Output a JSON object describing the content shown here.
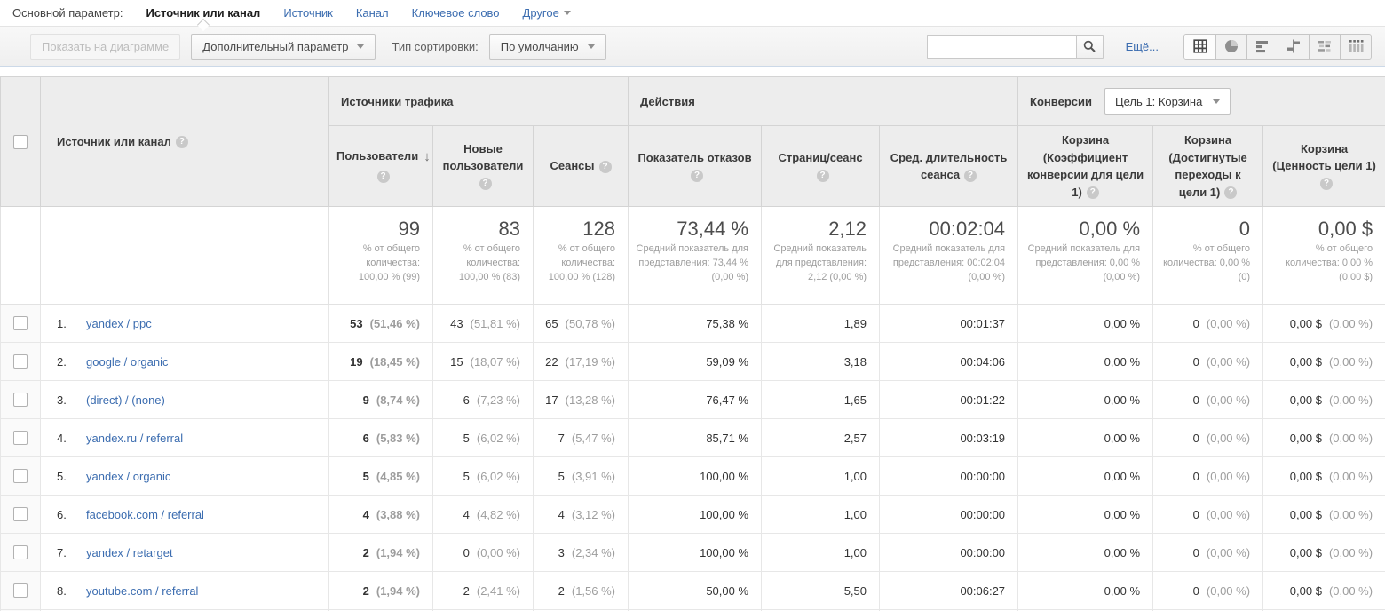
{
  "colors": {
    "link_blue": "#3c6db0",
    "toolbar_divider": "#ccd9e8"
  },
  "primary_bar": {
    "label": "Основной параметр:",
    "tabs": [
      {
        "label": "Источник или канал",
        "active": true
      },
      {
        "label": "Источник",
        "active": false
      },
      {
        "label": "Канал",
        "active": false
      },
      {
        "label": "Ключевое слово",
        "active": false
      },
      {
        "label": "Другое",
        "active": false,
        "dropdown": true
      }
    ]
  },
  "toolbar": {
    "plot_button_label": "Показать на диаграмме",
    "secondary_dimension_label": "Дополнительный параметр",
    "sort_type_label": "Тип сортировки:",
    "sort_type_value": "По умолчанию",
    "search_value": "",
    "more_link_label": "Ещё...",
    "views": [
      "data-table",
      "percentage-pie",
      "performance-bars",
      "comparison",
      "term-cloud",
      "pivot-table"
    ],
    "active_view": "data-table"
  },
  "table": {
    "dimension_header": "Источник или канал",
    "groups": {
      "traffic": "Источники трафика",
      "behavior": "Действия",
      "conversions": "Конверсии",
      "goal_selector": "Цель 1: Корзина"
    },
    "columns": [
      "Пользователи",
      "Новые пользователи",
      "Сеансы",
      "Показатель отказов",
      "Страниц/сеанс",
      "Сред. длительность сеанса",
      "Корзина (Коэффициент конверсии для цели 1)",
      "Корзина (Достигнутые переходы к цели 1)",
      "Корзина (Ценность цели 1)"
    ],
    "summary": [
      {
        "value": "99",
        "note": "% от общего количества: 100,00 % (99)"
      },
      {
        "value": "83",
        "note": "% от общего количества: 100,00 % (83)"
      },
      {
        "value": "128",
        "note": "% от общего количества: 100,00 % (128)"
      },
      {
        "value": "73,44 %",
        "note": "Средний показатель для представления: 73,44 % (0,00 %)"
      },
      {
        "value": "2,12",
        "note": "Средний показатель для представления: 2,12 (0,00 %)"
      },
      {
        "value": "00:02:04",
        "note": "Средний показатель для представления: 00:02:04 (0,00 %)"
      },
      {
        "value": "0,00 %",
        "note": "Средний показатель для представления: 0,00 % (0,00 %)"
      },
      {
        "value": "0",
        "note": "% от общего количества: 0,00 % (0)"
      },
      {
        "value": "0,00 $",
        "note": "% от общего количества: 0,00 % (0,00 $)"
      }
    ],
    "rows": [
      {
        "idx": "1.",
        "source": "yandex / ppc",
        "users": "53",
        "users_pct": "(51,46 %)",
        "new_users": "43",
        "new_users_pct": "(51,81 %)",
        "sessions": "65",
        "sessions_pct": "(50,78 %)",
        "bounce_rate": "75,38 %",
        "pages_per_session": "1,89",
        "avg_duration": "00:01:37",
        "goal_rate": "0,00 %",
        "goal_completions": "0",
        "goal_completions_pct": "(0,00 %)",
        "goal_value": "0,00 $",
        "goal_value_pct": "(0,00 %)"
      },
      {
        "idx": "2.",
        "source": "google / organic",
        "users": "19",
        "users_pct": "(18,45 %)",
        "new_users": "15",
        "new_users_pct": "(18,07 %)",
        "sessions": "22",
        "sessions_pct": "(17,19 %)",
        "bounce_rate": "59,09 %",
        "pages_per_session": "3,18",
        "avg_duration": "00:04:06",
        "goal_rate": "0,00 %",
        "goal_completions": "0",
        "goal_completions_pct": "(0,00 %)",
        "goal_value": "0,00 $",
        "goal_value_pct": "(0,00 %)"
      },
      {
        "idx": "3.",
        "source": "(direct) / (none)",
        "users": "9",
        "users_pct": "(8,74 %)",
        "new_users": "6",
        "new_users_pct": "(7,23 %)",
        "sessions": "17",
        "sessions_pct": "(13,28 %)",
        "bounce_rate": "76,47 %",
        "pages_per_session": "1,65",
        "avg_duration": "00:01:22",
        "goal_rate": "0,00 %",
        "goal_completions": "0",
        "goal_completions_pct": "(0,00 %)",
        "goal_value": "0,00 $",
        "goal_value_pct": "(0,00 %)"
      },
      {
        "idx": "4.",
        "source": "yandex.ru / referral",
        "users": "6",
        "users_pct": "(5,83 %)",
        "new_users": "5",
        "new_users_pct": "(6,02 %)",
        "sessions": "7",
        "sessions_pct": "(5,47 %)",
        "bounce_rate": "85,71 %",
        "pages_per_session": "2,57",
        "avg_duration": "00:03:19",
        "goal_rate": "0,00 %",
        "goal_completions": "0",
        "goal_completions_pct": "(0,00 %)",
        "goal_value": "0,00 $",
        "goal_value_pct": "(0,00 %)"
      },
      {
        "idx": "5.",
        "source": "yandex / organic",
        "users": "5",
        "users_pct": "(4,85 %)",
        "new_users": "5",
        "new_users_pct": "(6,02 %)",
        "sessions": "5",
        "sessions_pct": "(3,91 %)",
        "bounce_rate": "100,00 %",
        "pages_per_session": "1,00",
        "avg_duration": "00:00:00",
        "goal_rate": "0,00 %",
        "goal_completions": "0",
        "goal_completions_pct": "(0,00 %)",
        "goal_value": "0,00 $",
        "goal_value_pct": "(0,00 %)"
      },
      {
        "idx": "6.",
        "source": "facebook.com / referral",
        "users": "4",
        "users_pct": "(3,88 %)",
        "new_users": "4",
        "new_users_pct": "(4,82 %)",
        "sessions": "4",
        "sessions_pct": "(3,12 %)",
        "bounce_rate": "100,00 %",
        "pages_per_session": "1,00",
        "avg_duration": "00:00:00",
        "goal_rate": "0,00 %",
        "goal_completions": "0",
        "goal_completions_pct": "(0,00 %)",
        "goal_value": "0,00 $",
        "goal_value_pct": "(0,00 %)"
      },
      {
        "idx": "7.",
        "source": "yandex / retarget",
        "users": "2",
        "users_pct": "(1,94 %)",
        "new_users": "0",
        "new_users_pct": "(0,00 %)",
        "sessions": "3",
        "sessions_pct": "(2,34 %)",
        "bounce_rate": "100,00 %",
        "pages_per_session": "1,00",
        "avg_duration": "00:00:00",
        "goal_rate": "0,00 %",
        "goal_completions": "0",
        "goal_completions_pct": "(0,00 %)",
        "goal_value": "0,00 $",
        "goal_value_pct": "(0,00 %)"
      },
      {
        "idx": "8.",
        "source": "youtube.com / referral",
        "users": "2",
        "users_pct": "(1,94 %)",
        "new_users": "2",
        "new_users_pct": "(2,41 %)",
        "sessions": "2",
        "sessions_pct": "(1,56 %)",
        "bounce_rate": "50,00 %",
        "pages_per_session": "5,50",
        "avg_duration": "00:06:27",
        "goal_rate": "0,00 %",
        "goal_completions": "0",
        "goal_completions_pct": "(0,00 %)",
        "goal_value": "0,00 $",
        "goal_value_pct": "(0,00 %)"
      }
    ]
  }
}
